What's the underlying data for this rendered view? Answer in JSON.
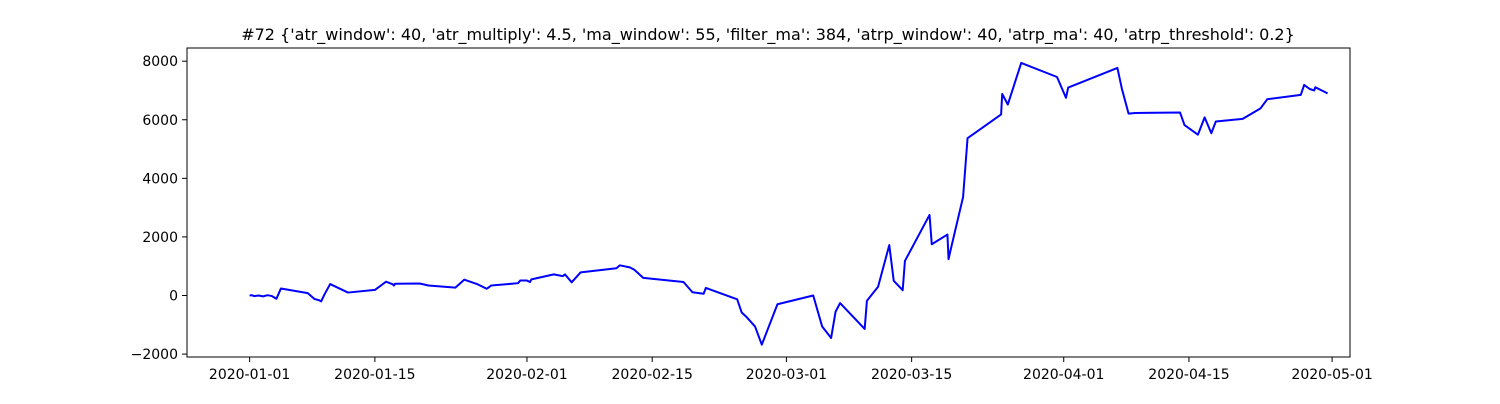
{
  "chart_data": {
    "type": "line",
    "title": "#72 {'atr_window': 40, 'atr_multiply': 4.5, 'ma_window': 55, 'filter_ma': 384, 'atrp_window': 40, 'atrp_ma': 40, 'atrp_threshold': 0.2}",
    "xlabel": "",
    "ylabel": "",
    "x_axis_type": "date",
    "xlim": [
      "2019-12-25",
      "2020-05-03"
    ],
    "ylim": [
      -2100,
      8450
    ],
    "x_ticks": [
      "2020-01-01",
      "2020-01-15",
      "2020-02-01",
      "2020-02-15",
      "2020-03-01",
      "2020-03-15",
      "2020-04-01",
      "2020-04-15",
      "2020-05-01"
    ],
    "x_tick_labels": [
      "2020-01-01",
      "2020-01-15",
      "2020-02-01",
      "2020-02-15",
      "2020-03-01",
      "2020-03-15",
      "2020-04-01",
      "2020-04-15",
      "2020-05-01"
    ],
    "y_ticks": [
      -2000,
      0,
      2000,
      4000,
      6000,
      8000
    ],
    "y_tick_labels": [
      "−2000",
      "0",
      "2000",
      "4000",
      "6000",
      "8000"
    ],
    "grid": false,
    "legend": "none",
    "series": [
      {
        "color": "#0000ff",
        "points": [
          [
            "2020-01-01 00:00",
            0
          ],
          [
            "2020-01-01 06:00",
            10
          ],
          [
            "2020-01-01 12:00",
            -20
          ],
          [
            "2020-01-02 00:00",
            0
          ],
          [
            "2020-01-02 12:00",
            -30
          ],
          [
            "2020-01-03 00:00",
            10
          ],
          [
            "2020-01-03 12:00",
            -20
          ],
          [
            "2020-01-04 00:00",
            -110
          ],
          [
            "2020-01-04 12:00",
            240
          ],
          [
            "2020-01-07 12:00",
            80
          ],
          [
            "2020-01-08 06:00",
            -120
          ],
          [
            "2020-01-08 18:00",
            -160
          ],
          [
            "2020-01-09 00:00",
            -200
          ],
          [
            "2020-01-09 09:00",
            40
          ],
          [
            "2020-01-10 00:00",
            390
          ],
          [
            "2020-01-12 00:00",
            100
          ],
          [
            "2020-01-15 00:00",
            190
          ],
          [
            "2020-01-16 06:00",
            470
          ],
          [
            "2020-01-17 00:00",
            380
          ],
          [
            "2020-01-17 03:00",
            340
          ],
          [
            "2020-01-17 06:00",
            400
          ],
          [
            "2020-01-20 00:00",
            410
          ],
          [
            "2020-01-21 00:00",
            340
          ],
          [
            "2020-01-24 00:00",
            270
          ],
          [
            "2020-01-25 00:00",
            540
          ],
          [
            "2020-01-26 12:00",
            380
          ],
          [
            "2020-01-27 12:00",
            230
          ],
          [
            "2020-01-28 00:00",
            340
          ],
          [
            "2020-01-31 00:00",
            420
          ],
          [
            "2020-01-31 06:00",
            510
          ],
          [
            "2020-02-01 00:00",
            510
          ],
          [
            "2020-02-01 08:00",
            460
          ],
          [
            "2020-02-01 12:00",
            550
          ],
          [
            "2020-02-04 00:00",
            720
          ],
          [
            "2020-02-05 00:00",
            660
          ],
          [
            "2020-02-05 06:00",
            720
          ],
          [
            "2020-02-06 00:00",
            450
          ],
          [
            "2020-02-07 00:00",
            790
          ],
          [
            "2020-02-11 00:00",
            930
          ],
          [
            "2020-02-11 09:00",
            1030
          ],
          [
            "2020-02-12 12:00",
            960
          ],
          [
            "2020-02-13 00:00",
            880
          ],
          [
            "2020-02-14 00:00",
            600
          ],
          [
            "2020-02-18 12:00",
            460
          ],
          [
            "2020-02-19 12:00",
            110
          ],
          [
            "2020-02-20 18:00",
            60
          ],
          [
            "2020-02-21 00:00",
            260
          ],
          [
            "2020-02-24 12:00",
            -130
          ],
          [
            "2020-02-25 00:00",
            -580
          ],
          [
            "2020-02-25 12:00",
            -720
          ],
          [
            "2020-02-26 12:00",
            -1060
          ],
          [
            "2020-02-27 06:00",
            -1680
          ],
          [
            "2020-02-29 00:00",
            -300
          ],
          [
            "2020-03-04 00:00",
            0
          ],
          [
            "2020-03-05 00:00",
            -1060
          ],
          [
            "2020-03-06 00:00",
            -1450
          ],
          [
            "2020-03-06 12:00",
            -550
          ],
          [
            "2020-03-07 00:00",
            -260
          ],
          [
            "2020-03-09 18:00",
            -1140
          ],
          [
            "2020-03-10 00:00",
            -180
          ],
          [
            "2020-03-11 06:00",
            300
          ],
          [
            "2020-03-12 12:00",
            1720
          ],
          [
            "2020-03-13 00:00",
            500
          ],
          [
            "2020-03-14 00:00",
            180
          ],
          [
            "2020-03-14 06:00",
            1180
          ],
          [
            "2020-03-17 00:00",
            2750
          ],
          [
            "2020-03-17 06:00",
            1750
          ],
          [
            "2020-03-19 00:00",
            2080
          ],
          [
            "2020-03-19 03:00",
            1240
          ],
          [
            "2020-03-19 09:00",
            1580
          ],
          [
            "2020-03-20 18:00",
            3360
          ],
          [
            "2020-03-21 06:00",
            5370
          ],
          [
            "2020-03-25 00:00",
            6180
          ],
          [
            "2020-03-25 03:00",
            6880
          ],
          [
            "2020-03-25 18:00",
            6520
          ],
          [
            "2020-03-27 06:00",
            7940
          ],
          [
            "2020-03-31 06:00",
            7460
          ],
          [
            "2020-04-01 06:00",
            6750
          ],
          [
            "2020-04-01 12:00",
            7100
          ],
          [
            "2020-04-07 00:00",
            7770
          ],
          [
            "2020-04-07 12:00",
            7060
          ],
          [
            "2020-04-08 06:00",
            6210
          ],
          [
            "2020-04-09 00:00",
            6230
          ],
          [
            "2020-04-14 00:00",
            6250
          ],
          [
            "2020-04-14 12:00",
            5820
          ],
          [
            "2020-04-16 00:00",
            5490
          ],
          [
            "2020-04-16 18:00",
            6080
          ],
          [
            "2020-04-17 12:00",
            5540
          ],
          [
            "2020-04-18 00:00",
            5940
          ],
          [
            "2020-04-21 00:00",
            6030
          ],
          [
            "2020-04-23 00:00",
            6390
          ],
          [
            "2020-04-23 18:00",
            6700
          ],
          [
            "2020-04-27 12:00",
            6850
          ],
          [
            "2020-04-27 21:00",
            7190
          ],
          [
            "2020-04-28 12:00",
            7050
          ],
          [
            "2020-04-29 00:00",
            7000
          ],
          [
            "2020-04-29 03:00",
            7110
          ],
          [
            "2020-04-30 12:00",
            6900
          ]
        ]
      }
    ]
  }
}
